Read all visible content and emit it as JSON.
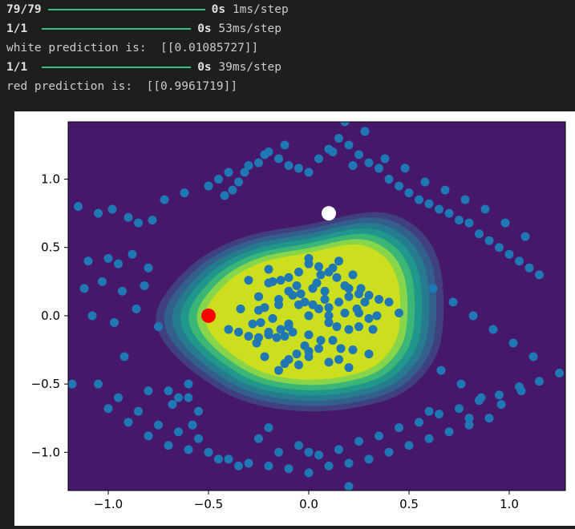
{
  "console": {
    "lines": [
      {
        "prefix": "79/79",
        "time": "0s",
        "suffix": "1ms/step"
      },
      {
        "prefix": "1/1",
        "time": "0s",
        "suffix": "53ms/step"
      },
      {
        "text": "white prediction is:  [[0.01085727]]"
      },
      {
        "prefix": "1/1",
        "time": "0s",
        "suffix": "39ms/step"
      },
      {
        "text": "red prediction is:  [[0.9961719]]"
      }
    ]
  },
  "chart_data": {
    "type": "scatter",
    "background": "contourf decision boundary (viridis)",
    "xlim": [
      -1.2,
      1.28
    ],
    "ylim": [
      -1.28,
      1.42
    ],
    "xticks": [
      "−1.0",
      "−0.5",
      "0.0",
      "0.5",
      "1.0"
    ],
    "xtick_values": [
      -1.0,
      -0.5,
      0.0,
      0.5,
      1.0
    ],
    "yticks": [
      "−1.0",
      "−0.5",
      "0.0",
      "0.5",
      "1.0"
    ],
    "ytick_values": [
      -1.0,
      -0.5,
      0.0,
      0.5,
      1.0
    ],
    "series": [
      {
        "marker": "dots",
        "color": "#1f77b4",
        "x": [
          -1.15,
          -1.05,
          -0.98,
          -0.9,
          -0.85,
          -0.78,
          -1.1,
          -1.0,
          -0.95,
          -0.88,
          -0.8,
          -1.12,
          -1.03,
          -0.93,
          -0.82,
          -1.08,
          -0.97,
          -0.86,
          -0.75,
          -1.18,
          -0.92,
          -0.7,
          -0.65,
          -0.6,
          -0.55,
          -0.68,
          -0.58,
          -0.72,
          -0.62,
          -0.5,
          -0.45,
          -0.4,
          -0.35,
          -0.3,
          -0.42,
          -0.38,
          -0.25,
          -0.2,
          -0.15,
          -0.1,
          -0.05,
          0.0,
          0.05,
          0.1,
          0.15,
          0.2,
          0.25,
          0.3,
          0.35,
          0.4,
          0.45,
          0.5,
          0.55,
          0.6,
          0.65,
          0.7,
          0.75,
          0.8,
          0.85,
          0.9,
          0.95,
          1.0,
          1.05,
          1.1,
          1.15,
          0.22,
          0.28,
          0.18,
          0.12,
          -0.12,
          -0.22,
          -0.32,
          0.38,
          0.48,
          0.58,
          0.68,
          0.78,
          0.88,
          0.98,
          1.08,
          0.62,
          0.72,
          0.82,
          0.92,
          1.02,
          1.12,
          0.66,
          0.76,
          0.86,
          0.96,
          1.06,
          -0.85,
          -0.95,
          -1.05,
          -0.75,
          -0.65,
          -0.55,
          -0.7,
          -0.8,
          -0.9,
          -1.0,
          -0.6,
          -0.5,
          -0.4,
          -0.3,
          -0.2,
          -0.1,
          0.0,
          0.1,
          0.2,
          0.3,
          0.4,
          0.5,
          0.6,
          0.7,
          0.8,
          0.9,
          -0.45,
          -0.35,
          -0.25,
          -0.15,
          -0.05,
          0.05,
          0.15,
          0.25,
          0.35,
          0.45,
          0.55,
          0.65,
          0.75,
          0.85,
          0.95,
          1.05,
          1.15,
          1.25,
          0.2,
          0.0,
          -0.2,
          0.6,
          0.8,
          -0.6,
          -0.8
        ],
        "y": [
          0.8,
          0.75,
          0.78,
          0.72,
          0.68,
          0.7,
          0.4,
          0.42,
          0.38,
          0.45,
          0.35,
          0.2,
          0.25,
          0.18,
          0.22,
          0.0,
          -0.05,
          0.05,
          -0.08,
          -0.5,
          -0.3,
          -0.55,
          -0.6,
          -0.5,
          -0.7,
          -0.65,
          -0.8,
          0.85,
          0.9,
          0.95,
          1.0,
          1.05,
          0.98,
          1.1,
          0.88,
          0.92,
          1.12,
          1.2,
          1.15,
          1.1,
          1.08,
          1.05,
          1.15,
          1.22,
          1.3,
          1.25,
          1.18,
          1.12,
          1.08,
          1.0,
          0.95,
          0.9,
          0.85,
          0.82,
          0.78,
          0.75,
          0.7,
          0.68,
          0.6,
          0.55,
          0.5,
          0.45,
          0.4,
          0.35,
          0.3,
          1.1,
          1.35,
          1.42,
          1.2,
          1.25,
          1.18,
          1.05,
          1.15,
          1.08,
          0.98,
          0.92,
          0.85,
          0.78,
          0.68,
          0.58,
          0.2,
          0.1,
          0.0,
          -0.1,
          -0.2,
          -0.3,
          -0.4,
          -0.5,
          -0.6,
          -0.65,
          -0.55,
          -0.7,
          -0.6,
          -0.5,
          -0.8,
          -0.85,
          -0.9,
          -0.95,
          -0.88,
          -0.78,
          -0.68,
          -0.98,
          -1.0,
          -1.05,
          -1.08,
          -1.1,
          -1.12,
          -1.15,
          -1.1,
          -1.08,
          -1.05,
          -1.0,
          -0.95,
          -0.9,
          -0.85,
          -0.8,
          -0.75,
          -1.05,
          -1.1,
          -0.9,
          -1.0,
          -0.95,
          -1.02,
          -0.98,
          -0.92,
          -0.88,
          -0.82,
          -0.78,
          -0.72,
          -0.68,
          -0.62,
          -0.58,
          -0.52,
          -0.48,
          -0.42,
          -1.25,
          -1.0,
          -0.82,
          -0.7,
          -0.75,
          -0.6,
          -0.55
        ]
      },
      {
        "marker": "dots",
        "color": "#1f77b4",
        "cluster": "inner",
        "x": [
          0.0,
          0.05,
          0.1,
          0.15,
          0.2,
          -0.05,
          -0.1,
          -0.15,
          -0.2,
          0.25,
          0.3,
          -0.25,
          0.02,
          0.08,
          0.12,
          0.18,
          -0.02,
          -0.08,
          -0.12,
          -0.18,
          0.22,
          0.28,
          0.32,
          -0.22,
          -0.28,
          0.06,
          0.14,
          -0.06,
          -0.14,
          0.0,
          0.1,
          -0.1,
          0.2,
          -0.2,
          0.04,
          0.16,
          -0.04,
          -0.16,
          0.26,
          -0.26,
          0.0,
          0.12,
          -0.12,
          0.24,
          -0.24,
          0.08,
          -0.08,
          0.18,
          -0.18,
          0.3,
          -0.3,
          0.02,
          0.14,
          -0.02,
          -0.14,
          0.22,
          -0.22,
          0.1,
          -0.1,
          0.06,
          -0.06,
          0.34,
          -0.34,
          0.4,
          -0.4,
          0.45,
          0.0,
          0.2,
          -0.2,
          0.1,
          -0.1,
          0.3,
          -0.3,
          0.15,
          -0.15,
          0.05,
          -0.05,
          0.25,
          -0.25,
          0.35,
          -0.35,
          0.0,
          0.1,
          -0.1,
          0.2,
          -0.2,
          0.05,
          -0.05,
          0.15,
          -0.15,
          0.25,
          -0.25,
          0.0
        ],
        "y": [
          0.0,
          0.05,
          -0.05,
          0.1,
          -0.1,
          0.08,
          -0.08,
          0.12,
          -0.12,
          0.02,
          -0.02,
          0.04,
          0.2,
          0.18,
          -0.18,
          0.22,
          -0.22,
          0.15,
          -0.15,
          0.25,
          -0.25,
          0.1,
          -0.1,
          0.06,
          -0.06,
          0.3,
          0.28,
          -0.28,
          0.26,
          -0.26,
          0.32,
          -0.32,
          0.14,
          -0.14,
          0.24,
          -0.24,
          0.16,
          -0.16,
          0.2,
          -0.2,
          -0.3,
          0.35,
          -0.35,
          0.05,
          -0.05,
          0.12,
          -0.12,
          0.02,
          -0.02,
          0.15,
          -0.15,
          0.08,
          -0.08,
          0.1,
          -0.1,
          0.3,
          -0.3,
          0.0,
          0.18,
          -0.18,
          0.22,
          0.0,
          0.05,
          0.1,
          -0.1,
          0.02,
          0.38,
          -0.38,
          0.34,
          -0.34,
          0.28,
          -0.28,
          0.26,
          0.4,
          -0.4,
          0.36,
          -0.36,
          0.16,
          -0.16,
          0.12,
          -0.12,
          0.42,
          0.06,
          -0.06,
          0.2,
          0.24,
          -0.24,
          0.32,
          -0.32,
          0.08,
          -0.08,
          0.14,
          -0.14
        ]
      },
      {
        "marker": "highlight",
        "color": "#ffffff",
        "x": [
          0.1
        ],
        "y": [
          0.75
        ]
      },
      {
        "marker": "highlight",
        "color": "#ff0000",
        "x": [
          -0.5
        ],
        "y": [
          0.0
        ]
      }
    ]
  }
}
